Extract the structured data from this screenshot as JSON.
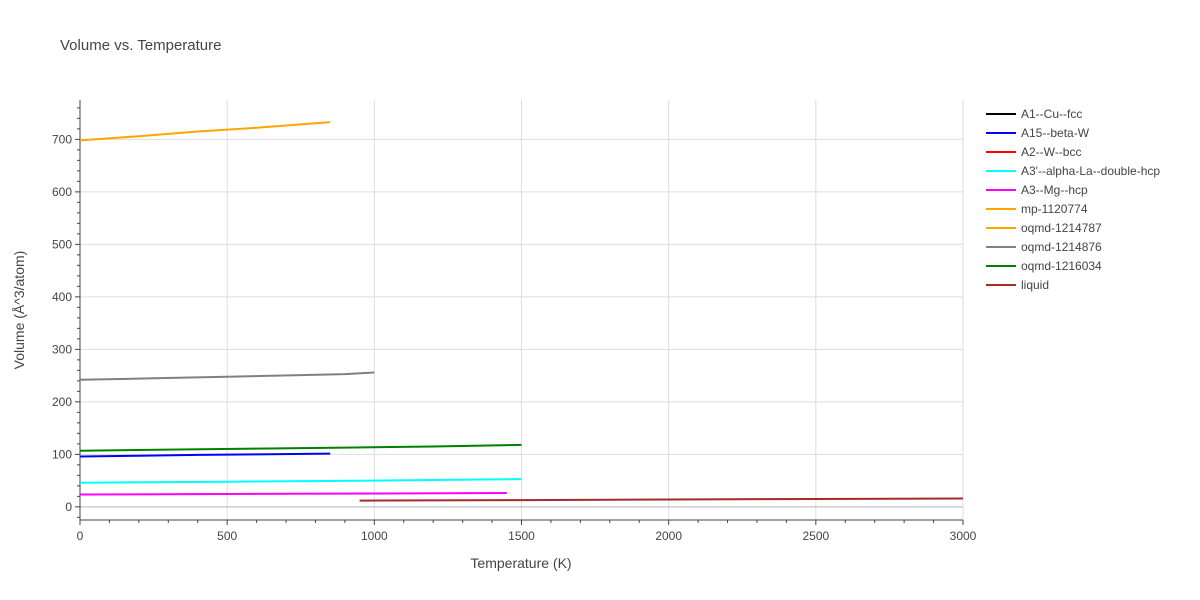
{
  "chart_data": {
    "type": "line",
    "title": "Volume vs. Temperature",
    "xlabel": "Temperature (K)",
    "ylabel": "Volume (Å^3/atom)",
    "xlim": [
      0,
      3000
    ],
    "ylim": [
      -25,
      775
    ],
    "xticks": [
      0,
      500,
      1000,
      1500,
      2000,
      2500,
      3000
    ],
    "yticks": [
      0,
      100,
      200,
      300,
      400,
      500,
      600,
      700
    ],
    "grid": true,
    "legend_position": "right",
    "series": [
      {
        "name": "A1--Cu--fcc",
        "color": "#000000",
        "x": [],
        "y": []
      },
      {
        "name": "A15--beta-W",
        "color": "#0000ff",
        "x": [
          0,
          200,
          400,
          600,
          850
        ],
        "y": [
          96,
          97.5,
          99,
          100,
          101.5
        ]
      },
      {
        "name": "A2--W--bcc",
        "color": "#ff0000",
        "x": [],
        "y": []
      },
      {
        "name": "A3'--alpha-La--double-hcp",
        "color": "#00ffff",
        "x": [
          0,
          500,
          1000,
          1500
        ],
        "y": [
          46,
          48,
          50,
          53
        ]
      },
      {
        "name": "A3--Mg--hcp",
        "color": "#ff00ff",
        "x": [
          0,
          500,
          1000,
          1450
        ],
        "y": [
          23.5,
          24.5,
          25.5,
          26.5
        ]
      },
      {
        "name": "mp-1120774",
        "color": "#ffa500",
        "x": [],
        "y": []
      },
      {
        "name": "oqmd-1214787",
        "color": "#ffa500",
        "x": [
          0,
          200,
          400,
          600,
          850
        ],
        "y": [
          698,
          706,
          715,
          722,
          733
        ]
      },
      {
        "name": "oqmd-1214876",
        "color": "#808080",
        "x": [
          0,
          250,
          500,
          750,
          900,
          1000
        ],
        "y": [
          242,
          245,
          248,
          251,
          253,
          256
        ]
      },
      {
        "name": "oqmd-1216034",
        "color": "#008000",
        "x": [
          0,
          300,
          600,
          900,
          1200,
          1500
        ],
        "y": [
          107,
          109,
          111,
          113,
          115,
          118
        ]
      },
      {
        "name": "liquid",
        "color": "#a52a2a",
        "x": [
          950,
          1500,
          2000,
          2500,
          3000
        ],
        "y": [
          12,
          13,
          14,
          15,
          16
        ]
      }
    ]
  }
}
